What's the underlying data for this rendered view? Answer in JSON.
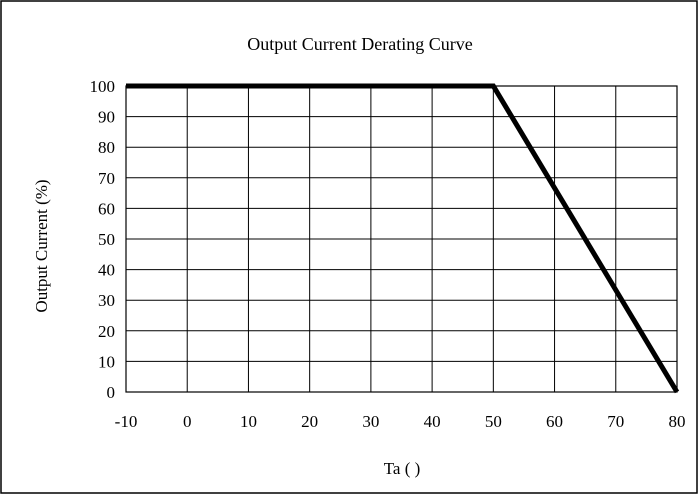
{
  "chart_data": {
    "type": "line",
    "title": "Output Current  Derating  Curve",
    "xlabel": "Ta (    )",
    "ylabel": "Output Current (%)",
    "x_ticks": [
      "-10",
      "0",
      "10",
      "20",
      "30",
      "40",
      "50",
      "60",
      "70",
      "80"
    ],
    "y_ticks": [
      "100",
      "90",
      "80",
      "70",
      "60",
      "50",
      "40",
      "30",
      "20",
      "10",
      "0"
    ],
    "xlim": [
      -10,
      80
    ],
    "ylim": [
      0,
      100
    ],
    "grid": true,
    "series": [
      {
        "x": [
          -10,
          50,
          80
        ],
        "y": [
          100,
          100,
          0
        ]
      }
    ],
    "colors": {
      "line": "#000000",
      "grid": "#000000",
      "border": "#000000",
      "background": "#ffffff"
    }
  }
}
